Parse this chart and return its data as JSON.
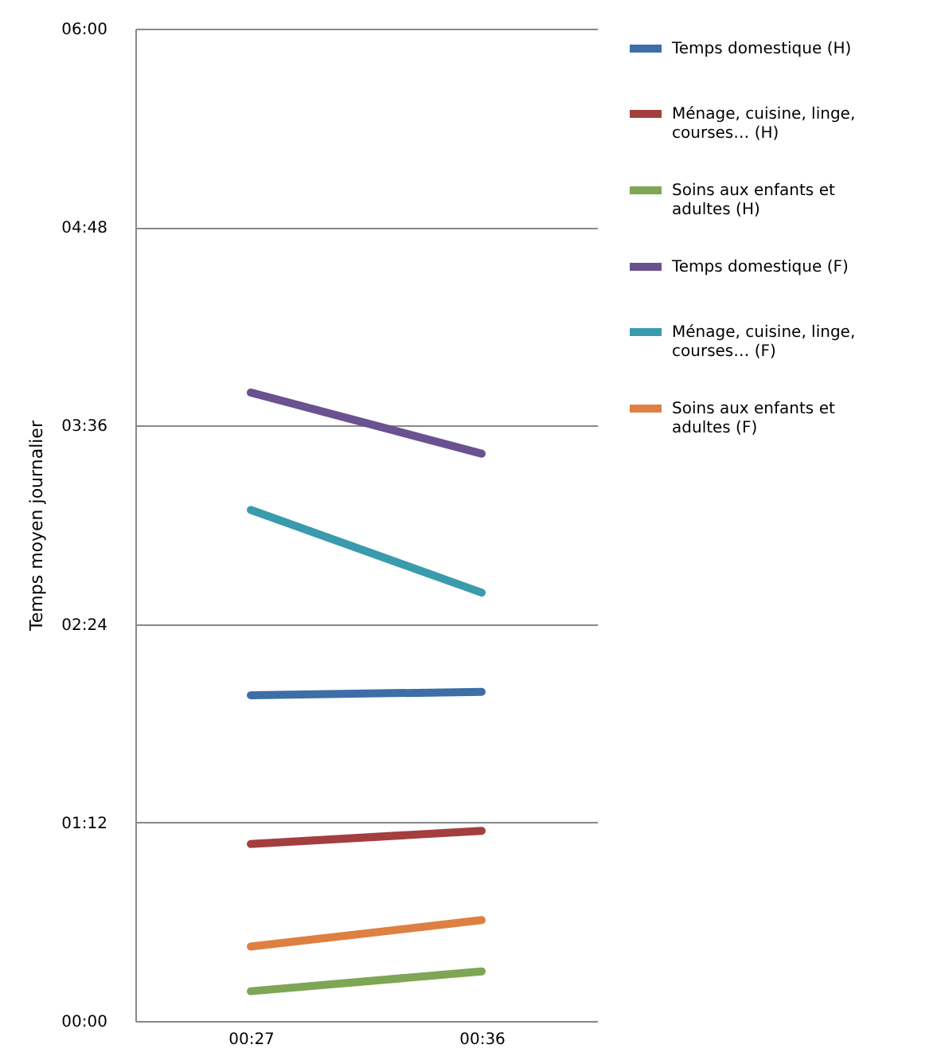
{
  "chart_data": {
    "type": "line",
    "ylabel": "Temps moyen journalier",
    "categories": [
      "00:27",
      "00:36"
    ],
    "series": [
      {
        "name": "Temps domestique (H)",
        "color": "#3d6ea8",
        "values": [
          1.97,
          1.99
        ]
      },
      {
        "name": "Ménage, cuisine, linge, courses… (H)",
        "color": "#a33f3e",
        "values": [
          1.07,
          1.15
        ]
      },
      {
        "name": "Soins aux enfants et adultes (H)",
        "color": "#7ea655",
        "values": [
          0.18,
          0.3
        ]
      },
      {
        "name": "Temps domestique (F)",
        "color": "#6a5190",
        "values": [
          3.8,
          3.43
        ]
      },
      {
        "name": "Ménage, cuisine, linge, courses… (F)",
        "color": "#3a9bad",
        "values": [
          3.09,
          2.59
        ]
      },
      {
        "name": "Soins aux enfants et adultes (F)",
        "color": "#dd8042",
        "values": [
          0.45,
          0.61
        ]
      }
    ],
    "ylim": [
      0,
      6
    ],
    "yticks": [
      {
        "value": 0,
        "label": "00:00"
      },
      {
        "value": 1.2,
        "label": "01:12"
      },
      {
        "value": 2.4,
        "label": "02:24"
      },
      {
        "value": 3.6,
        "label": "03:36"
      },
      {
        "value": 4.8,
        "label": "04:48"
      },
      {
        "value": 6,
        "label": "06:00"
      }
    ],
    "grid": "y",
    "legend": "right",
    "marker": "none",
    "line_style": "solid"
  }
}
